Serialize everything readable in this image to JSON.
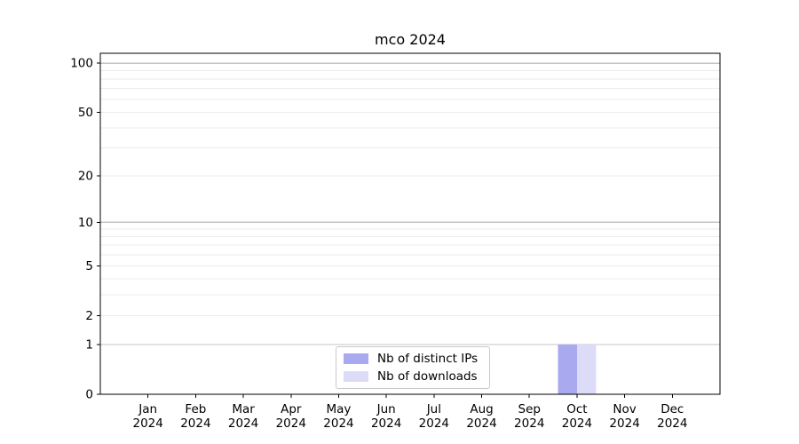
{
  "chart_data": {
    "type": "bar",
    "title": "mco 2024",
    "categories": [
      "Jan 2024",
      "Feb 2024",
      "Mar 2024",
      "Apr 2024",
      "May 2024",
      "Jun 2024",
      "Jul 2024",
      "Aug 2024",
      "Sep 2024",
      "Oct 2024",
      "Nov 2024",
      "Dec 2024"
    ],
    "series": [
      {
        "name": "Nb of distinct IPs",
        "color": "#a9a9f0",
        "values": [
          0,
          0,
          0,
          0,
          0,
          0,
          0,
          0,
          0,
          1,
          0,
          0
        ]
      },
      {
        "name": "Nb of downloads",
        "color": "#dcdcf8",
        "values": [
          0,
          0,
          0,
          0,
          0,
          0,
          0,
          0,
          0,
          1,
          0,
          0
        ]
      }
    ],
    "xlabel": "",
    "ylabel": "",
    "yscale": "log1p",
    "ylim": [
      0,
      115
    ],
    "yticks": [
      0,
      1,
      2,
      5,
      10,
      20,
      50,
      100
    ],
    "grid_major_at": [
      1,
      10,
      100
    ],
    "grid_minor_at": [
      2,
      3,
      4,
      5,
      6,
      7,
      8,
      9,
      20,
      30,
      40,
      50,
      60,
      70,
      80,
      90
    ],
    "legend_position": "lower center",
    "colors": {
      "grid_major": "#c4c4c4",
      "grid_minor": "#ebebeb",
      "spine": "#000000",
      "text": "#000000",
      "background": "#ffffff"
    }
  }
}
